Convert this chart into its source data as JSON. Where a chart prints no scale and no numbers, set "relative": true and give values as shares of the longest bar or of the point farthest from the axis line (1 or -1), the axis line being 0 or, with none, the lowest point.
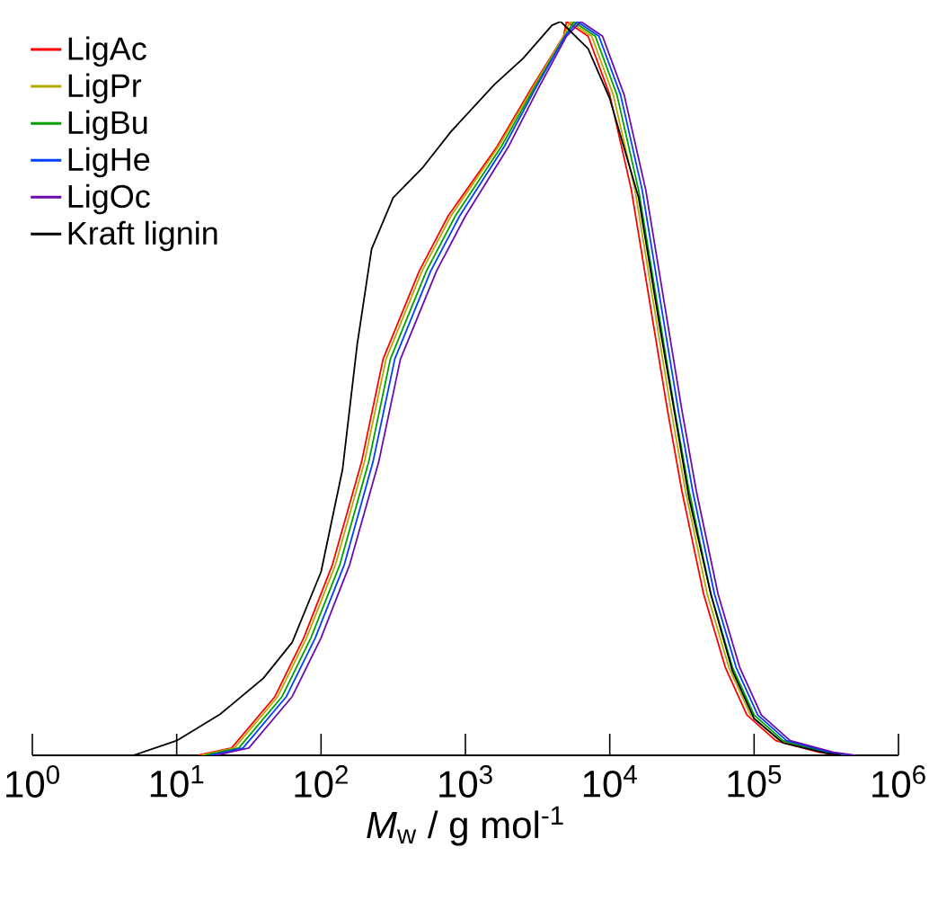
{
  "chart_data": {
    "type": "line",
    "relative": true,
    "log": "x",
    "xlabel": "*M*$_{w}$ / g mol$^{-1}$",
    "xlim": [
      1,
      1000000
    ],
    "xticks": [
      {
        "value": 1,
        "label": "10$^{0}$"
      },
      {
        "value": 10,
        "label": "10$^{1}$"
      },
      {
        "value": 100,
        "label": "10$^{2}$"
      },
      {
        "value": 1000,
        "label": "10$^{3}$"
      },
      {
        "value": 10000,
        "label": "10$^{4}$"
      },
      {
        "value": 100000,
        "label": "10$^{5}$"
      },
      {
        "value": 1000000,
        "label": "10$^{6}$"
      }
    ],
    "legend": "top left",
    "grid": false,
    "marker": "none",
    "line_style": "solid",
    "series": [
      {
        "name": "LigAc",
        "color": "#ff0000",
        "x": [
          14.1,
          24.0,
          47.9,
          75.9,
          120,
          191,
          269,
          479,
          759,
          1660,
          2818,
          4786,
          5012,
          7079,
          10000,
          14130,
          19950,
          25120,
          31620,
          44670,
          63100,
          89130,
          141300,
          281800,
          398100
        ],
        "values": [
          0,
          0.01,
          0.08,
          0.16,
          0.26,
          0.4,
          0.54,
          0.66,
          0.735,
          0.83,
          0.907,
          0.98,
          1.0,
          0.98,
          0.9,
          0.77,
          0.59,
          0.47,
          0.36,
          0.22,
          0.12,
          0.055,
          0.02,
          0.004,
          0
        ]
      },
      {
        "name": "LigPr",
        "color": "#b5a800",
        "x": [
          14.8,
          25.1,
          50.1,
          79.4,
          126,
          200,
          282,
          501,
          794,
          1698,
          2884,
          4786,
          5309,
          7499,
          10590,
          14960,
          21130,
          26610,
          33500,
          47320,
          66830,
          94410,
          149600,
          298500,
          421700
        ],
        "values": [
          0,
          0.01,
          0.08,
          0.16,
          0.26,
          0.4,
          0.54,
          0.66,
          0.735,
          0.83,
          0.907,
          0.98,
          1.0,
          0.98,
          0.9,
          0.77,
          0.59,
          0.47,
          0.36,
          0.22,
          0.12,
          0.055,
          0.02,
          0.004,
          0
        ]
      },
      {
        "name": "LigBu",
        "color": "#00a000",
        "x": [
          15.8,
          26.9,
          53.7,
          85.1,
          135,
          214,
          302,
          537,
          851,
          1778,
          2951,
          4898,
          5623,
          7943,
          11220,
          15850,
          22390,
          28180,
          35480,
          50120,
          70790,
          100000,
          158500,
          316200,
          446700
        ],
        "values": [
          0,
          0.01,
          0.08,
          0.16,
          0.26,
          0.4,
          0.54,
          0.66,
          0.735,
          0.83,
          0.907,
          0.98,
          1.0,
          0.98,
          0.9,
          0.77,
          0.59,
          0.47,
          0.36,
          0.22,
          0.12,
          0.055,
          0.02,
          0.004,
          0
        ]
      },
      {
        "name": "LigHe",
        "color": "#0040ff",
        "x": [
          17.0,
          28.8,
          57.5,
          91.2,
          145,
          229,
          324,
          575,
          912,
          1862,
          3020,
          4898,
          5957,
          8414,
          11890,
          16790,
          23710,
          29850,
          37580,
          53090,
          74990,
          105900,
          167900,
          335000,
          473200
        ],
        "values": [
          0,
          0.01,
          0.08,
          0.16,
          0.26,
          0.4,
          0.54,
          0.66,
          0.735,
          0.83,
          0.907,
          0.98,
          1.0,
          0.98,
          0.9,
          0.77,
          0.59,
          0.47,
          0.36,
          0.22,
          0.12,
          0.055,
          0.02,
          0.004,
          0
        ]
      },
      {
        "name": "LigOc",
        "color": "#6a0dad",
        "x": [
          18.6,
          31.6,
          63.1,
          100,
          158,
          251,
          355,
          631,
          1000,
          1995,
          3162,
          5012,
          6310,
          8913,
          12590,
          17780,
          25120,
          31620,
          39810,
          56230,
          79430,
          112200,
          177800,
          354800,
          501200
        ],
        "values": [
          0,
          0.01,
          0.08,
          0.16,
          0.26,
          0.4,
          0.54,
          0.66,
          0.735,
          0.83,
          0.907,
          0.98,
          1.0,
          0.98,
          0.9,
          0.77,
          0.59,
          0.47,
          0.36,
          0.22,
          0.12,
          0.055,
          0.02,
          0.004,
          0
        ]
      },
      {
        "name": "Kraft lignin",
        "color": "#000000",
        "x": [
          5.01,
          10,
          20,
          39.8,
          63.1,
          100,
          141,
          178,
          224,
          316,
          501,
          794,
          1585,
          2512,
          3981,
          4571,
          7079,
          10000,
          15850,
          22390,
          28180,
          35480,
          50120,
          70790,
          100000,
          158500,
          316200,
          398100
        ],
        "values": [
          0,
          0.02,
          0.056,
          0.105,
          0.154,
          0.25,
          0.39,
          0.56,
          0.69,
          0.76,
          0.8,
          0.85,
          0.914,
          0.95,
          0.995,
          1.0,
          0.963,
          0.895,
          0.76,
          0.58,
          0.466,
          0.35,
          0.22,
          0.115,
          0.05,
          0.017,
          0.003,
          0
        ]
      }
    ]
  }
}
